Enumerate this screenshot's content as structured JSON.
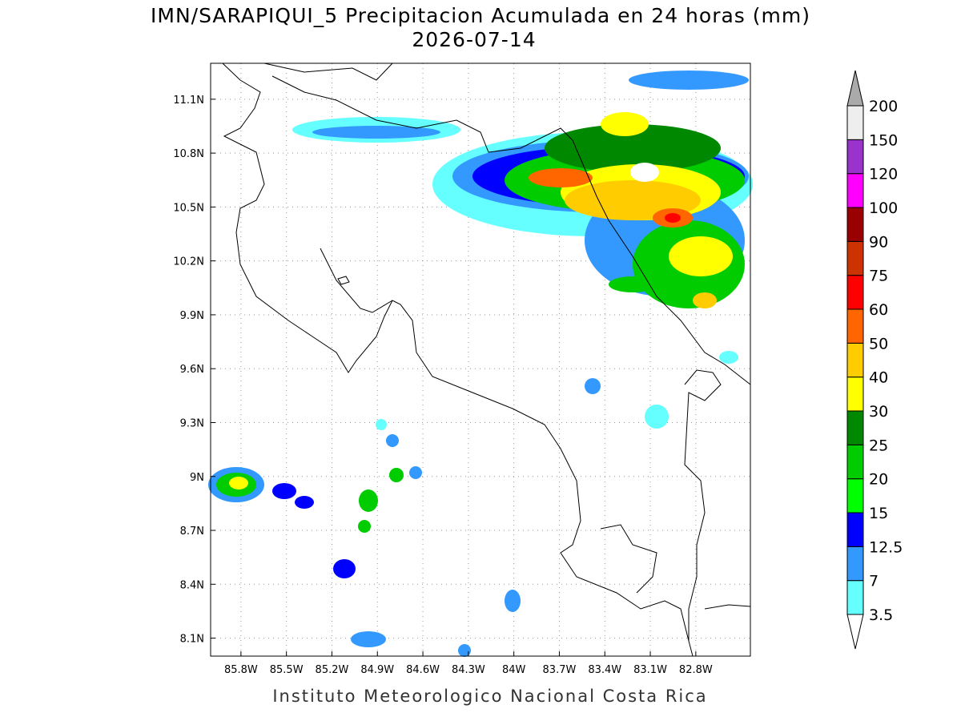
{
  "title": "IMN/SARAPIQUI_5 Precipitacion Acumulada en 24 horas (mm)",
  "subtitle": "2026-07-14",
  "footer": "Instituto Meteorologico Nacional Costa Rica",
  "map": {
    "xlim": [
      -86.0,
      -82.44
    ],
    "ylim": [
      8.0,
      11.3
    ],
    "grid": true,
    "xticks": [
      {
        "value": -85.8,
        "label": "85.8W"
      },
      {
        "value": -85.5,
        "label": "85.5W"
      },
      {
        "value": -85.2,
        "label": "85.2W"
      },
      {
        "value": -84.9,
        "label": "84.9W"
      },
      {
        "value": -84.6,
        "label": "84.6W"
      },
      {
        "value": -84.3,
        "label": "84.3W"
      },
      {
        "value": -84.0,
        "label": "84W"
      },
      {
        "value": -83.7,
        "label": "83.7W"
      },
      {
        "value": -83.4,
        "label": "83.4W"
      },
      {
        "value": -83.1,
        "label": "83.1W"
      },
      {
        "value": -82.8,
        "label": "82.8W"
      }
    ],
    "yticks": [
      {
        "value": 8.1,
        "label": "8.1N"
      },
      {
        "value": 8.4,
        "label": "8.4N"
      },
      {
        "value": 8.7,
        "label": "8.7N"
      },
      {
        "value": 9.0,
        "label": "9N"
      },
      {
        "value": 9.3,
        "label": "9.3N"
      },
      {
        "value": 9.6,
        "label": "9.6N"
      },
      {
        "value": 9.9,
        "label": "9.9N"
      },
      {
        "value": 10.2,
        "label": "10.2N"
      },
      {
        "value": 10.5,
        "label": "10.5N"
      },
      {
        "value": 10.8,
        "label": "10.8N"
      },
      {
        "value": 11.1,
        "label": "11.1N"
      }
    ]
  },
  "colorbar": {
    "levels": [
      3.5,
      7,
      12.5,
      15,
      20,
      25,
      30,
      40,
      50,
      60,
      75,
      90,
      100,
      120,
      150,
      200
    ],
    "colors": [
      "#66ffff",
      "#3399ff",
      "#0000ff",
      "#00ff00",
      "#00cc00",
      "#008800",
      "#ffff00",
      "#ffcc00",
      "#ff6600",
      "#ff0000",
      "#cc3300",
      "#990000",
      "#ff00ff",
      "#9933cc",
      "#eeeeee"
    ],
    "under_color": "#ffffff",
    "over_color": "#aaaaaa"
  }
}
